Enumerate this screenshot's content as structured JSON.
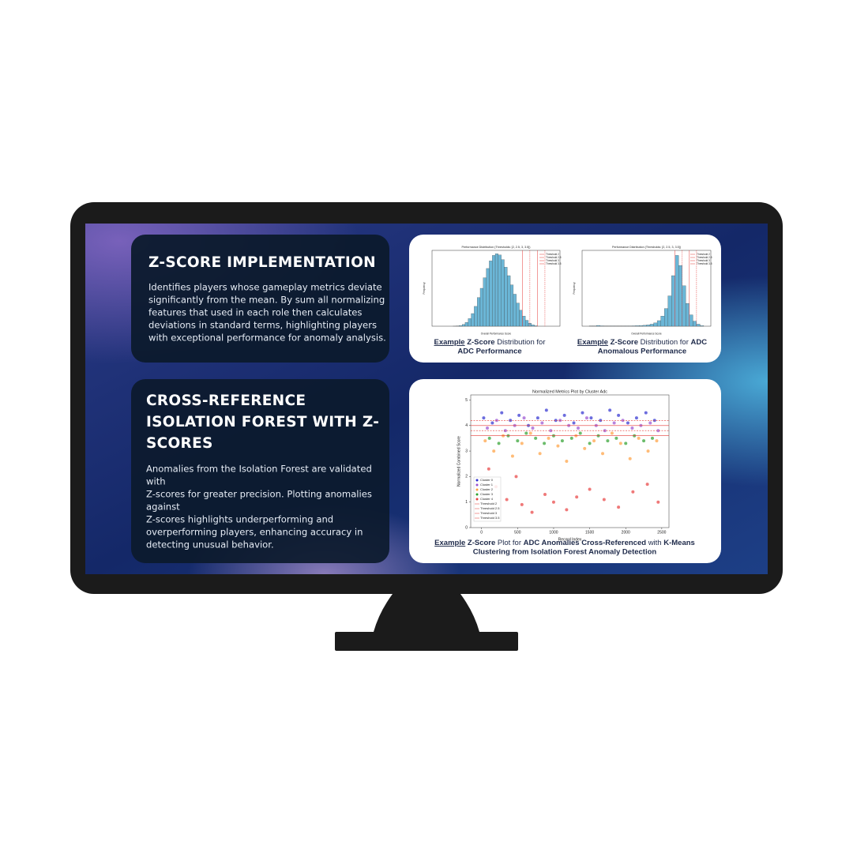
{
  "cards": [
    {
      "title": [
        "Z-SCORE IMPLEMENTATION"
      ],
      "body": [
        "Identifies players whose gameplay metrics deviate",
        "significantly from the mean. By sum all normalizing",
        "features that used in each role then calculates",
        "deviations in standard terms, highlighting players",
        "with exceptional performance for anomaly analysis."
      ]
    },
    {
      "title": [
        "CROSS-REFERENCE",
        "ISOLATION FOREST WITH Z-",
        "SCORES"
      ],
      "body": [
        "Anomalies from the Isolation Forest are validated",
        "with",
        "Z-scores for greater precision. Plotting anomalies",
        "against",
        "Z-scores highlights underperforming and",
        "overperforming players, enhancing accuracy in",
        "detecting unusual behavior."
      ]
    }
  ],
  "figures": [
    {
      "type": "histogram",
      "title": "Performance Distribution (Thresholds: [2, 2.5, 3, 3.5])",
      "x_label": "Overall Performance Score",
      "y_label": "Frequency",
      "color": "#6bb6d6",
      "bins": [
        -3,
        -2.8,
        -2.6,
        -2.4,
        -2.2,
        -2,
        -1.8,
        -1.6,
        -1.4,
        -1.2,
        -1,
        -0.8,
        -0.6,
        -0.4,
        -0.2,
        0,
        0.2,
        0.4,
        0.6,
        0.8,
        1,
        1.2,
        1.4,
        1.6,
        1.8,
        2,
        2.2,
        2.4,
        2.6,
        2.8,
        3
      ],
      "values": [
        0,
        0,
        10,
        50,
        150,
        400,
        900,
        1800,
        3000,
        4700,
        6800,
        9000,
        11500,
        13700,
        15500,
        16800,
        17200,
        16900,
        15800,
        14000,
        12000,
        9800,
        7600,
        5500,
        3800,
        2400,
        1400,
        700,
        300,
        100
      ],
      "xlim": [
        -4,
        4.5
      ],
      "ylim": [
        0,
        18000
      ],
      "thresholds": [
        {
          "name": "Threshold 2",
          "value": 2
        },
        {
          "name": "Threshold 2.5",
          "value": 2.5
        },
        {
          "name": "Threshold 3",
          "value": 3
        },
        {
          "name": "Threshold 3.5",
          "value": 3.5
        }
      ],
      "caption": [
        [
          "Example",
          "Z-Score",
          "Distribution for"
        ],
        [
          "ADC Performance"
        ]
      ]
    },
    {
      "type": "histogram",
      "title": "Performance Distribution (Thresholds: [2, 2.5, 3, 3.5])",
      "x_label": "Overall Performance Score",
      "y_label": "Frequency",
      "color": "#6bb6d6",
      "bins": [
        -4,
        -3.75,
        -3.5,
        -3.25,
        -3,
        -2.75,
        -2.5,
        -2.25,
        -2,
        -1.75,
        -1.5,
        -1.25,
        -1,
        -0.75,
        -0.5,
        -0.25,
        0,
        0.25,
        0.5,
        0.75,
        1,
        1.25,
        1.5,
        1.75,
        2,
        2.25,
        2.5,
        2.75,
        3,
        3.25,
        3.5,
        3.75,
        4
      ],
      "values": [
        5,
        10,
        30,
        15,
        5,
        5,
        10,
        5,
        5,
        5,
        10,
        10,
        15,
        20,
        25,
        35,
        50,
        80,
        130,
        220,
        400,
        700,
        1200,
        2000,
        2800,
        2400,
        1600,
        900,
        450,
        200,
        80,
        20
      ],
      "xlim": [
        -4.5,
        4.5
      ],
      "ylim": [
        0,
        3000
      ],
      "thresholds": [
        {
          "name": "Threshold 2",
          "value": 2
        },
        {
          "name": "Threshold 2.5",
          "value": 2.5
        },
        {
          "name": "Threshold 3",
          "value": 3
        },
        {
          "name": "Threshold 3.5",
          "value": 3.5
        }
      ],
      "caption": [
        [
          "Example",
          "Z-Score",
          "Distribution for",
          "ADC"
        ],
        [
          "Anomalous Performance"
        ]
      ]
    },
    {
      "type": "scatter",
      "title": "Normalized Metrics Plot by Cluster Adc",
      "x_label": "Record Index",
      "y_label": "Normalized Combined Score",
      "xlim": [
        -150,
        2600
      ],
      "ylim": [
        0,
        5.2
      ],
      "xticks": [
        0,
        500,
        1000,
        1500,
        2000,
        2500
      ],
      "yticks": [
        0,
        1,
        2,
        3,
        4,
        5
      ],
      "series": [
        {
          "name": "Cluster 0",
          "color": "#2d2fd0",
          "x": [
            30,
            150,
            280,
            400,
            520,
            650,
            780,
            900,
            1030,
            1150,
            1280,
            1400,
            1520,
            1650,
            1780,
            1900,
            2030,
            2150,
            2280,
            2400
          ],
          "values": [
            4.3,
            4.1,
            4.5,
            4.2,
            4.4,
            4.0,
            4.3,
            4.6,
            4.2,
            4.4,
            4.1,
            4.5,
            4.3,
            4.2,
            4.6,
            4.4,
            4.1,
            4.3,
            4.5,
            4.2
          ]
        },
        {
          "name": "Cluster 1",
          "color": "#9a4fd0",
          "x": [
            80,
            210,
            330,
            460,
            590,
            710,
            840,
            960,
            1090,
            1210,
            1340,
            1460,
            1590,
            1710,
            1840,
            1960,
            2090,
            2210,
            2340,
            2450
          ],
          "values": [
            3.9,
            4.2,
            3.8,
            4.0,
            4.3,
            3.9,
            4.1,
            3.8,
            4.2,
            4.0,
            3.9,
            4.3,
            4.0,
            3.8,
            4.1,
            4.2,
            3.9,
            4.0,
            4.1,
            3.8
          ]
        },
        {
          "name": "Cluster 2",
          "color": "#ff9f3f",
          "x": [
            50,
            170,
            300,
            430,
            560,
            680,
            810,
            930,
            1060,
            1180,
            1310,
            1430,
            1560,
            1680,
            1810,
            1930,
            2060,
            2180,
            2310,
            2430
          ],
          "values": [
            3.4,
            3.0,
            3.6,
            2.8,
            3.3,
            3.7,
            2.9,
            3.5,
            3.2,
            2.6,
            3.6,
            3.1,
            3.4,
            2.9,
            3.7,
            3.3,
            2.7,
            3.5,
            3.0,
            3.4
          ]
        },
        {
          "name": "Cluster 3",
          "color": "#2ca02c",
          "x": [
            110,
            240,
            370,
            500,
            620,
            750,
            870,
            1000,
            1120,
            1250,
            1370,
            1500,
            1620,
            1750,
            1870,
            2000,
            2120,
            2250,
            2370
          ],
          "values": [
            3.5,
            3.3,
            3.6,
            3.4,
            3.7,
            3.5,
            3.3,
            3.6,
            3.4,
            3.5,
            3.7,
            3.3,
            3.6,
            3.4,
            3.5,
            3.3,
            3.6,
            3.4,
            3.5
          ]
        },
        {
          "name": "Cluster 4",
          "color": "#e84040",
          "x": [
            100,
            200,
            350,
            480,
            560,
            700,
            880,
            1000,
            1180,
            1320,
            1500,
            1700,
            1900,
            2100,
            2300,
            2450
          ],
          "values": [
            2.3,
            1.6,
            1.1,
            2.0,
            0.9,
            0.6,
            1.3,
            1.0,
            0.7,
            1.2,
            1.5,
            1.1,
            0.8,
            1.4,
            1.7,
            1.0
          ]
        }
      ],
      "thresholds": [
        {
          "name": "Threshold 2",
          "value": 3.6
        },
        {
          "name": "Threshold 2.5",
          "value": 3.8
        },
        {
          "name": "Threshold 3",
          "value": 4.0
        },
        {
          "name": "Threshold 3.5",
          "value": 4.2
        }
      ],
      "caption": [
        [
          "Example",
          "Z-Score",
          "Plot for",
          "ADC Anomalies Cross-Referenced",
          "with",
          "K-Means"
        ],
        [
          "Clustering from Isolation Forest Anomaly Detection"
        ]
      ]
    }
  ]
}
